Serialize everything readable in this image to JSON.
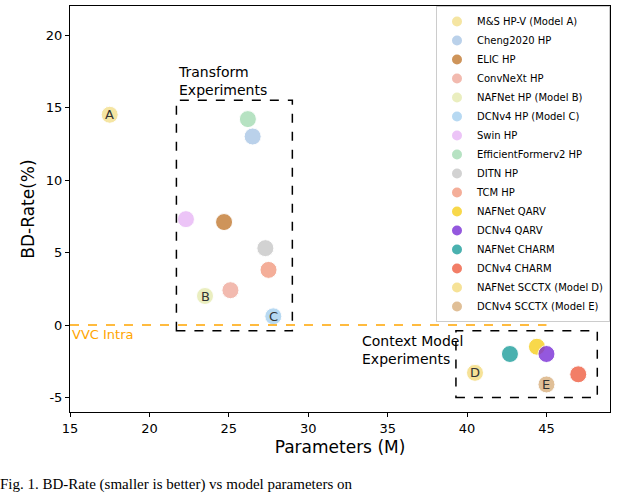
{
  "chart_data": {
    "type": "scatter",
    "x_label": "Parameters (M)",
    "y_label": "BD-Rate(%)",
    "caption": "Fig. 1. BD-Rate (smaller is better) vs model parameters on",
    "xlim": [
      15,
      49
    ],
    "ylim": [
      -6,
      22
    ],
    "xticks": [
      15,
      20,
      25,
      30,
      35,
      40,
      45
    ],
    "yticks": [
      -5,
      0,
      5,
      10,
      15,
      20
    ],
    "grid": false,
    "legend": "upper right",
    "marker": "circle",
    "series": [
      {
        "name": "M&S HP-V (Model A)",
        "color": "#f3df8c",
        "x": [
          17.5
        ],
        "values": [
          14.5
        ],
        "label": "A"
      },
      {
        "name": "Cheng2020 HP",
        "color": "#a9c6e6",
        "x": [
          26.5
        ],
        "values": [
          13.0
        ]
      },
      {
        "name": "ELIC HP",
        "color": "#c27a32",
        "x": [
          24.7
        ],
        "values": [
          7.1
        ]
      },
      {
        "name": "ConvNeXt HP",
        "color": "#f0aa9c",
        "x": [
          25.1
        ],
        "values": [
          2.4
        ]
      },
      {
        "name": "NAFNet HP (Model B)",
        "color": "#e6ebb0",
        "x": [
          23.5
        ],
        "values": [
          2.0
        ],
        "label": "B"
      },
      {
        "name": "DCNv4 HP (Model C)",
        "color": "#a6d0f0",
        "x": [
          27.8
        ],
        "values": [
          0.6
        ],
        "label": "C"
      },
      {
        "name": "Swin HP",
        "color": "#e8b6f6",
        "x": [
          22.3
        ],
        "values": [
          7.3
        ]
      },
      {
        "name": "EfficientFormerv2 HP",
        "color": "#a4dcb4",
        "x": [
          26.2
        ],
        "values": [
          14.2
        ]
      },
      {
        "name": "DITN HP",
        "color": "#c8c8c8",
        "x": [
          27.3
        ],
        "values": [
          5.3
        ]
      },
      {
        "name": "TCM HP",
        "color": "#f29a80",
        "x": [
          27.5
        ],
        "values": [
          3.8
        ]
      },
      {
        "name": "NAFNet QARV",
        "color": "#f7cf1e",
        "x": [
          44.4
        ],
        "values": [
          -1.5
        ]
      },
      {
        "name": "DCNv4 QARV",
        "color": "#7a2fd6",
        "x": [
          45.0
        ],
        "values": [
          -2.0
        ]
      },
      {
        "name": "NAFNet CHARM",
        "color": "#1e9e9c",
        "x": [
          42.7
        ],
        "values": [
          -2.0
        ]
      },
      {
        "name": "DCNv4 CHARM",
        "color": "#ef5f42",
        "x": [
          47.0
        ],
        "values": [
          -3.4
        ]
      },
      {
        "name": "NAFNet SCCTX (Model D)",
        "color": "#f5dc7e",
        "x": [
          40.5
        ],
        "values": [
          -3.3
        ],
        "label": "D"
      },
      {
        "name": "DCNv4 SCCTX (Model E)",
        "color": "#d9b07e",
        "x": [
          45.0
        ],
        "values": [
          -4.1
        ],
        "label": "E"
      }
    ],
    "reference_line": {
      "label": "VVC Intra",
      "value": 0,
      "xlim": [
        15,
        45
      ],
      "color": "#ffa500",
      "line_style": "dashed"
    },
    "boxes": [
      {
        "label": "Transform\nExperiments",
        "xlim": [
          21.7,
          29.0
        ],
        "ylim": [
          -0.4,
          15.5
        ]
      },
      {
        "label": "Context Model\nExperiments",
        "xlim": [
          39.3,
          48.2
        ],
        "ylim": [
          -5.0,
          -0.4
        ]
      }
    ]
  }
}
